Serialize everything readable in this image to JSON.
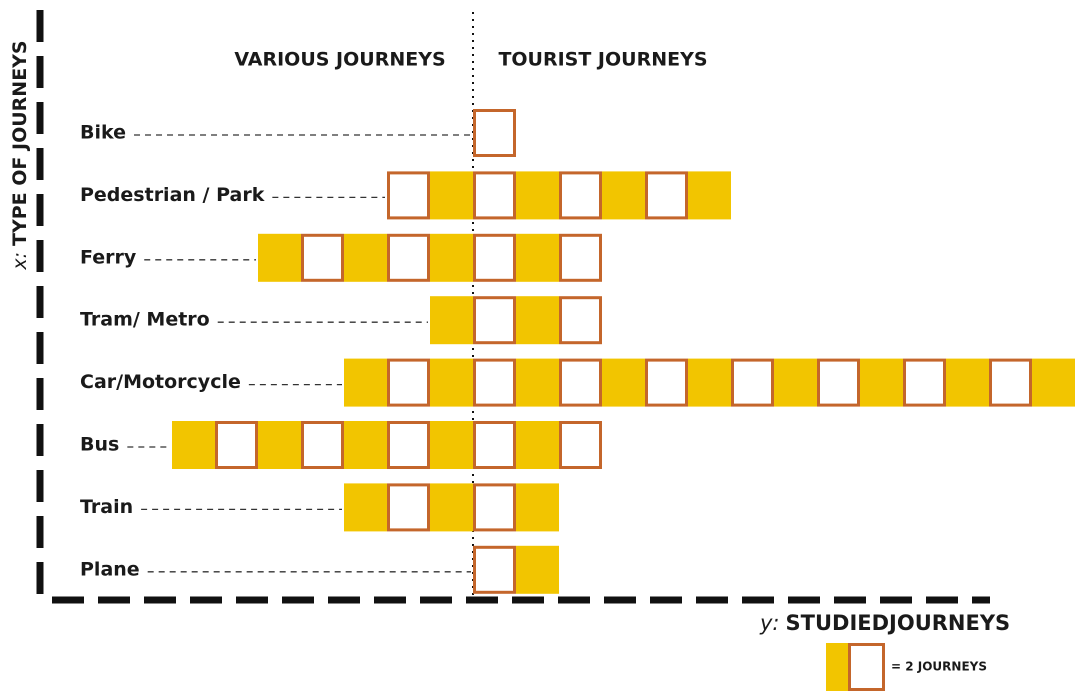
{
  "chart_data": {
    "type": "unit-bar",
    "categories": [
      "Bike",
      "Pedestrian / Park",
      "Ferry",
      "Tram/ Metro",
      "Car/Motorcycle",
      "Bus",
      "Train",
      "Plane"
    ],
    "series": [
      {
        "name": "VARIOUS JOURNEYS",
        "side": "left",
        "values": [
          0,
          2,
          5,
          1,
          3,
          7,
          3,
          0
        ]
      },
      {
        "name": "TOURIST JOURNEYS",
        "side": "right",
        "values": [
          1,
          6,
          3,
          3,
          14,
          3,
          2,
          2
        ]
      }
    ],
    "colors": {
      "fill": "#f2c500",
      "outline": "#c4662b"
    },
    "y_axis_label": {
      "prefix": "x:",
      "text": "TYPE OF JOURNEYS"
    },
    "x_axis_label": {
      "prefix": "y:",
      "text": "STUDIEDJOURNEYS"
    },
    "legend_label": "= 2 JOURNEYS"
  }
}
